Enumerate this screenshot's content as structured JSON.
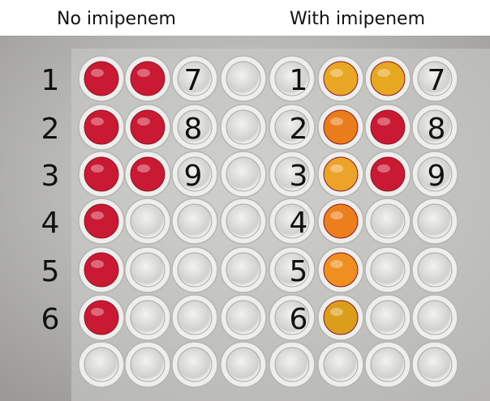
{
  "panels": [
    {
      "title": "No imipenem",
      "labels": [
        "1",
        "2",
        "3",
        "4",
        "5",
        "6",
        "7",
        "8",
        "9"
      ]
    },
    {
      "title": "With imipenem",
      "labels": [
        "1",
        "2",
        "3",
        "4",
        "5",
        "6",
        "7",
        "8",
        "9"
      ]
    }
  ]
}
